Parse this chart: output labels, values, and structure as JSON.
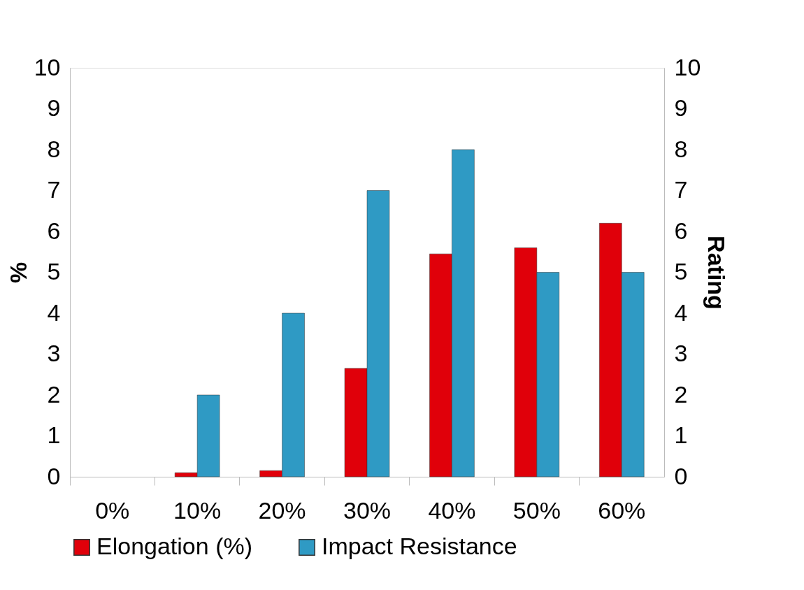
{
  "chart_data": {
    "type": "bar",
    "categories": [
      "0%",
      "10%",
      "20%",
      "30%",
      "40%",
      "50%",
      "60%"
    ],
    "series": [
      {
        "name": "Elongation (%)",
        "color": "#e0000a",
        "values": [
          null,
          0.1,
          0.15,
          2.65,
          5.45,
          5.6,
          6.2
        ]
      },
      {
        "name": "Impact Resistance",
        "color": "#2f9ac4",
        "axis": "y2",
        "values": [
          null,
          2,
          4,
          7,
          8,
          5,
          5
        ]
      }
    ],
    "ylabel": "%",
    "y2label": "Rating",
    "ylim": [
      0,
      10
    ],
    "yticks": [
      0,
      1,
      2,
      3,
      4,
      5,
      6,
      7,
      8,
      9,
      10
    ],
    "y2lim": [
      0,
      10
    ],
    "y2ticks": [
      0,
      1,
      2,
      3,
      4,
      5,
      6,
      7,
      8,
      9,
      10
    ],
    "grid": false,
    "legend": "bottom"
  }
}
